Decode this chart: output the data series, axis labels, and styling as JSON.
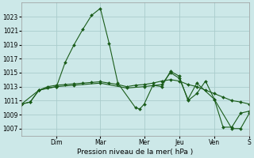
{
  "title": "Pression niveau de la mer( hPa )",
  "bg_color": "#cce8e8",
  "grid_color": "#aacccc",
  "line_color": "#1a5c1a",
  "ylim": [
    1006.0,
    1025.0
  ],
  "yticks": [
    1007,
    1009,
    1011,
    1013,
    1015,
    1017,
    1019,
    1021,
    1023
  ],
  "xlim": [
    0,
    13
  ],
  "day_labels": [
    "Dim",
    "Mar",
    "Mer",
    "Jeu",
    "Ven",
    "S"
  ],
  "day_positions": [
    2.0,
    4.5,
    7.0,
    9.0,
    11.0,
    13.0
  ],
  "series1": [
    [
      0.0,
      1010.5
    ],
    [
      0.5,
      1010.8
    ],
    [
      1.0,
      1012.5
    ],
    [
      1.5,
      1012.8
    ],
    [
      2.0,
      1013.0
    ],
    [
      2.5,
      1016.5
    ],
    [
      3.0,
      1019.0
    ],
    [
      3.5,
      1021.2
    ],
    [
      4.0,
      1023.2
    ],
    [
      4.5,
      1024.2
    ],
    [
      5.0,
      1019.2
    ],
    [
      5.5,
      1013.5
    ],
    [
      6.5,
      1010.0
    ],
    [
      6.75,
      1009.8
    ],
    [
      7.0,
      1010.5
    ],
    [
      7.5,
      1013.2
    ],
    [
      8.0,
      1013.0
    ],
    [
      8.5,
      1015.2
    ],
    [
      9.0,
      1014.5
    ],
    [
      9.5,
      1011.0
    ],
    [
      10.0,
      1012.0
    ],
    [
      10.5,
      1013.8
    ],
    [
      11.0,
      1011.2
    ],
    [
      11.5,
      1007.2
    ],
    [
      12.0,
      1007.2
    ],
    [
      12.5,
      1009.2
    ],
    [
      13.0,
      1009.5
    ]
  ],
  "series2": [
    [
      0.0,
      1010.5
    ],
    [
      0.5,
      1010.8
    ],
    [
      1.0,
      1012.5
    ],
    [
      1.5,
      1013.0
    ],
    [
      2.0,
      1013.2
    ],
    [
      2.5,
      1013.3
    ],
    [
      3.0,
      1013.4
    ],
    [
      3.5,
      1013.5
    ],
    [
      4.0,
      1013.6
    ],
    [
      4.5,
      1013.7
    ],
    [
      5.0,
      1013.5
    ],
    [
      5.5,
      1013.3
    ],
    [
      6.0,
      1013.0
    ],
    [
      6.5,
      1013.2
    ],
    [
      7.0,
      1013.3
    ],
    [
      7.5,
      1013.5
    ],
    [
      8.0,
      1013.8
    ],
    [
      8.5,
      1014.0
    ],
    [
      9.0,
      1013.8
    ],
    [
      9.5,
      1013.3
    ],
    [
      10.0,
      1013.0
    ],
    [
      10.5,
      1012.5
    ],
    [
      11.0,
      1012.0
    ],
    [
      11.5,
      1011.5
    ],
    [
      12.0,
      1011.0
    ],
    [
      12.5,
      1010.8
    ],
    [
      13.0,
      1010.5
    ]
  ],
  "series3": [
    [
      0.0,
      1010.5
    ],
    [
      1.0,
      1012.5
    ],
    [
      2.0,
      1013.0
    ],
    [
      3.0,
      1013.2
    ],
    [
      4.5,
      1013.5
    ],
    [
      6.0,
      1012.8
    ],
    [
      7.0,
      1013.0
    ],
    [
      8.0,
      1013.3
    ],
    [
      8.5,
      1015.0
    ],
    [
      9.0,
      1014.2
    ],
    [
      9.5,
      1011.2
    ],
    [
      10.0,
      1013.5
    ],
    [
      11.0,
      1011.2
    ],
    [
      12.0,
      1007.0
    ],
    [
      12.5,
      1007.0
    ],
    [
      13.0,
      1009.2
    ]
  ]
}
